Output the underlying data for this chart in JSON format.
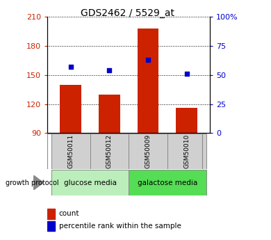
{
  "title": "GDS2462 / 5529_at",
  "samples": [
    "GSM50011",
    "GSM50012",
    "GSM50009",
    "GSM50010"
  ],
  "bar_values": [
    140,
    130,
    198,
    116
  ],
  "bar_bottom": 90,
  "percentile_values": [
    57,
    54,
    63,
    51
  ],
  "ylim_left": [
    90,
    210
  ],
  "ylim_right": [
    0,
    100
  ],
  "yticks_left": [
    90,
    120,
    150,
    180,
    210
  ],
  "yticks_right": [
    0,
    25,
    50,
    75,
    100
  ],
  "yticklabels_right": [
    "0",
    "25",
    "50",
    "75",
    "100%"
  ],
  "bar_color": "#cc2200",
  "dot_color": "#0000cc",
  "group1_label": "glucose media",
  "group2_label": "galactose media",
  "group1_color": "#bbeebb",
  "group2_color": "#55dd55",
  "growth_protocol_label": "growth protocol",
  "legend_count_label": "count",
  "legend_percentile_label": "percentile rank within the sample",
  "left_axis_color": "#cc2200",
  "right_axis_color": "#0000cc",
  "sample_box_color": "#d0d0d0",
  "bar_width": 0.55,
  "fig_width": 3.9,
  "fig_height": 3.45,
  "dpi": 100
}
